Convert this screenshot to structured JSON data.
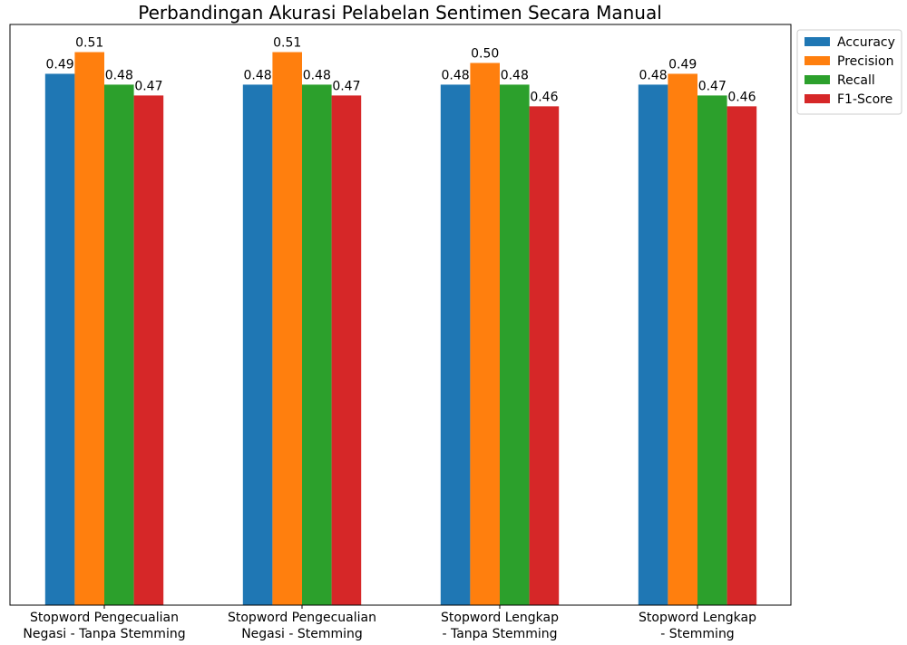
{
  "chart_data": {
    "type": "bar",
    "title": "Perbandingan Akurasi Pelabelan Sentimen Secara Manual",
    "xlabel": "",
    "ylabel": "",
    "ylim": [
      0,
      0.5355
    ],
    "grid": false,
    "legend_position": "upper-right-outside",
    "categories": [
      [
        "Stopword Pengecualian",
        "Negasi - Tanpa Stemming"
      ],
      [
        "Stopword Pengecualian",
        "Negasi - Stemming"
      ],
      [
        "Stopword Lengkap",
        "- Tanpa Stemming"
      ],
      [
        "Stopword Lengkap",
        "- Stemming"
      ]
    ],
    "series": [
      {
        "name": "Accuracy",
        "color": "#1f77b4",
        "values": [
          0.49,
          0.48,
          0.48,
          0.48
        ],
        "labels": [
          "0.49",
          "0.48",
          "0.48",
          "0.48"
        ]
      },
      {
        "name": "Precision",
        "color": "#ff7f0e",
        "values": [
          0.51,
          0.51,
          0.5,
          0.49
        ],
        "labels": [
          "0.51",
          "0.51",
          "0.50",
          "0.49"
        ]
      },
      {
        "name": "Recall",
        "color": "#2ca02c",
        "values": [
          0.48,
          0.48,
          0.48,
          0.47
        ],
        "labels": [
          "0.48",
          "0.48",
          "0.48",
          "0.47"
        ]
      },
      {
        "name": "F1-Score",
        "color": "#d62728",
        "values": [
          0.47,
          0.47,
          0.46,
          0.46
        ],
        "labels": [
          "0.47",
          "0.47",
          "0.46",
          "0.46"
        ]
      }
    ]
  }
}
